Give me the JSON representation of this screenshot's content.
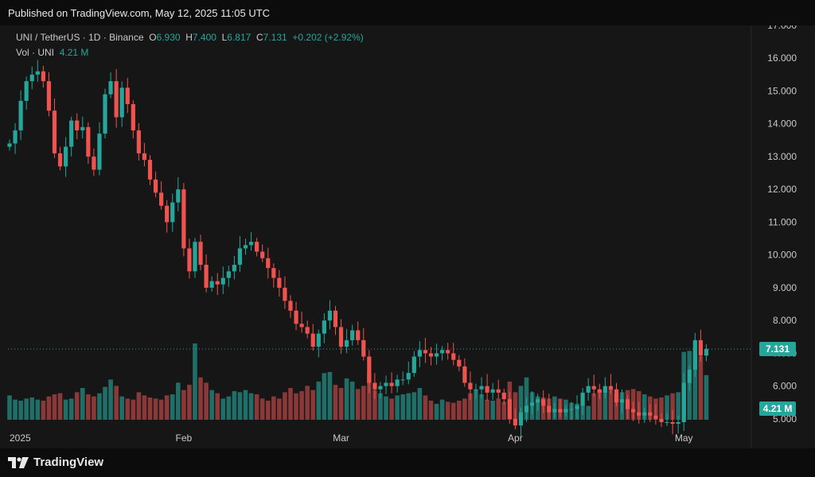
{
  "header": {
    "published": "Published on TradingView.com, May 12, 2025 11:05 UTC"
  },
  "legend": {
    "symbol": "UNI / TetherUS · 1D · Binance",
    "open_label": "O",
    "open": "6.930",
    "high_label": "H",
    "high": "7.400",
    "low_label": "L",
    "low": "6.817",
    "close_label": "C",
    "close": "7.131",
    "change": "+0.202 (+2.92%)",
    "vol_label": "Vol · UNI",
    "vol_value": "4.21 M"
  },
  "footer": {
    "brand": "TradingView"
  },
  "colors": {
    "up": "#26a69a",
    "down": "#ef5350",
    "up_vol": "#1f6e68",
    "down_vol": "#8a3838",
    "grid": "#262626"
  },
  "chart_data": {
    "type": "candlestick",
    "title": "UNI / TetherUS · 1D · Binance",
    "ylim": [
      4.1,
      17.0
    ],
    "y_ticks": [
      "17.000",
      "16.000",
      "15.000",
      "14.000",
      "13.000",
      "12.000",
      "11.000",
      "10.000",
      "9.000",
      "8.000",
      "7.000",
      "6.000",
      "5.000"
    ],
    "x_ticks": [
      {
        "label": "2025",
        "index": 0
      },
      {
        "label": "Feb",
        "index": 31
      },
      {
        "label": "Mar",
        "index": 59
      },
      {
        "label": "Apr",
        "index": 90
      },
      {
        "label": "May",
        "index": 120
      }
    ],
    "last_price": "7.131",
    "last_volume": "4.21 M",
    "volume_max_m": 7.5,
    "closes": [
      13.4,
      13.8,
      14.7,
      15.3,
      15.5,
      15.6,
      15.3,
      14.4,
      13.1,
      12.7,
      13.3,
      14.1,
      13.8,
      13.9,
      13.0,
      12.6,
      13.7,
      14.9,
      15.3,
      14.2,
      15.1,
      14.6,
      13.8,
      13.1,
      12.9,
      12.3,
      11.9,
      11.5,
      11.0,
      11.6,
      12.0,
      10.2,
      9.5,
      10.4,
      9.7,
      9.0,
      9.2,
      9.1,
      9.3,
      9.5,
      9.7,
      10.2,
      10.3,
      10.4,
      10.1,
      9.9,
      9.6,
      9.3,
      9.0,
      8.6,
      8.3,
      7.9,
      7.8,
      7.6,
      7.2,
      7.6,
      8.0,
      8.3,
      7.8,
      7.2,
      7.4,
      7.7,
      7.4,
      6.9,
      6.1,
      5.9,
      6.0,
      6.1,
      6.0,
      6.2,
      6.2,
      6.4,
      6.9,
      7.1,
      7.0,
      6.9,
      7.0,
      7.1,
      7.0,
      6.8,
      6.6,
      6.1,
      5.9,
      5.9,
      6.0,
      5.8,
      5.9,
      5.8,
      5.6,
      5.0,
      4.8,
      5.2,
      5.4,
      5.5,
      5.6,
      5.4,
      5.2,
      5.3,
      5.2,
      5.3,
      5.3,
      5.4,
      5.8,
      6.0,
      5.9,
      5.8,
      6.0,
      5.9,
      5.5,
      5.6,
      5.3,
      5.2,
      5.1,
      5.2,
      5.1,
      5.0,
      4.9,
      4.9,
      4.85,
      4.9,
      6.1,
      6.5,
      7.4,
      6.93,
      7.131
    ],
    "volumes": [
      2.3,
      1.9,
      1.8,
      2.0,
      2.1,
      1.9,
      1.8,
      2.2,
      2.4,
      2.5,
      1.9,
      2.0,
      2.6,
      3.0,
      2.4,
      2.2,
      2.5,
      3.1,
      3.8,
      3.2,
      2.2,
      2.0,
      1.9,
      2.6,
      2.3,
      2.1,
      2.0,
      1.9,
      2.3,
      2.4,
      3.5,
      2.8,
      3.3,
      7.2,
      4.0,
      3.5,
      2.8,
      2.5,
      2.0,
      2.2,
      2.7,
      2.6,
      2.8,
      2.5,
      2.4,
      2.0,
      1.8,
      2.2,
      2.0,
      2.6,
      3.0,
      2.5,
      2.7,
      3.2,
      2.8,
      3.6,
      4.4,
      4.5,
      3.3,
      3.0,
      3.9,
      3.6,
      2.9,
      3.2,
      4.4,
      2.8,
      2.5,
      2.2,
      2.0,
      2.3,
      2.4,
      2.5,
      2.6,
      3.0,
      2.3,
      1.8,
      1.5,
      1.9,
      1.7,
      1.6,
      1.8,
      2.0,
      2.5,
      2.8,
      2.4,
      1.9,
      1.8,
      2.0,
      1.7,
      3.6,
      2.6,
      3.2,
      4.0,
      2.6,
      2.2,
      2.1,
      2.0,
      2.2,
      2.0,
      1.9,
      1.6,
      1.5,
      1.4,
      1.3,
      2.5,
      2.8,
      2.7,
      2.9,
      2.5,
      2.6,
      2.8,
      2.9,
      2.7,
      2.4,
      2.2,
      2.0,
      2.1,
      2.3,
      2.5,
      2.6,
      6.4,
      6.5,
      6.3,
      6.0,
      4.21
    ]
  }
}
